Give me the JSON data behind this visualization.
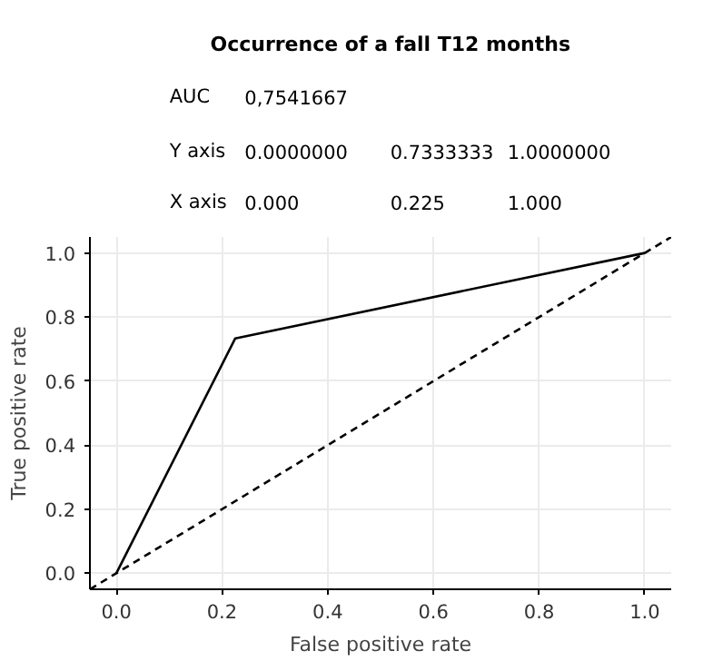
{
  "chart_data": {
    "type": "line",
    "title": "Occurrence of a fall T12 months",
    "xlabel": "False positive rate",
    "ylabel": "True positive rate",
    "annotations": [
      "AUC",
      "0,7541667",
      "Y axis",
      "0.0000000",
      "0.7333333",
      "1.0000000",
      "X axis",
      "0.000",
      "0.225",
      "1.000"
    ],
    "series": [
      {
        "color": "#000000",
        "x": [
          0,
          0.225,
          1
        ],
        "values": [
          0,
          0.7333333,
          1
        ],
        "line_style": "solid"
      },
      {
        "color": "#000000",
        "x": [
          -0.05,
          1.05
        ],
        "values": [
          -0.05,
          1.05
        ],
        "line_style": "dashed"
      }
    ],
    "xlim": [
      -0.05,
      1.05
    ],
    "ylim": [
      -0.05,
      1.05
    ],
    "xticks": [
      {
        "value": 0,
        "label": "0.0"
      },
      0.2,
      0.4,
      0.6,
      0.8,
      {
        "value": 1,
        "label": "1.0"
      }
    ],
    "yticks": [
      {
        "value": 0,
        "label": "0.0"
      },
      0.2,
      0.4,
      0.6,
      0.8,
      {
        "value": 1,
        "label": "1.0"
      }
    ],
    "grid": true,
    "marker": "none"
  }
}
